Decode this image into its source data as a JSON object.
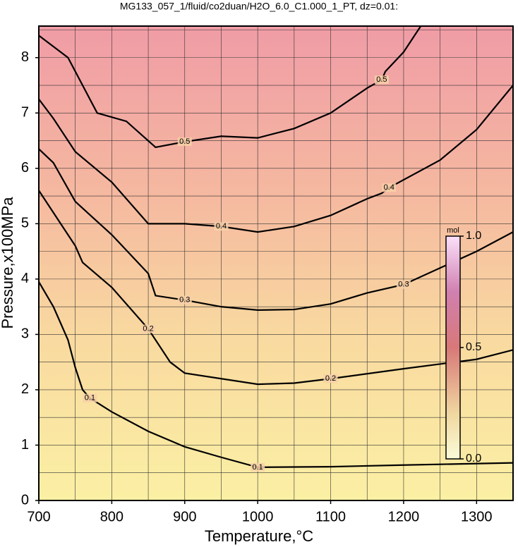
{
  "chart_data": {
    "type": "contour",
    "title": "MG133_057_1/fluid/co2duan/H2O_6.0_C1.000_1_PT, dz=0.01:",
    "x_label": "Temperature,°C",
    "y_label": "Pressure,x100MPa",
    "xlim": [
      700,
      1350
    ],
    "ylim": [
      0,
      8.57
    ],
    "xticks": [
      700,
      800,
      900,
      1000,
      1100,
      1200,
      1300
    ],
    "yticks": [
      0,
      1,
      2,
      3,
      4,
      5,
      6,
      7,
      8
    ],
    "xgrid": [
      700,
      750,
      800,
      850,
      900,
      950,
      1000,
      1050,
      1100,
      1150,
      1200,
      1250,
      1300
    ],
    "ygrid": [
      0.5,
      1,
      1.5,
      2,
      2.5,
      3,
      3.5,
      4,
      4.5,
      5,
      5.5,
      6,
      6.5,
      7,
      7.5,
      8,
      8.5
    ],
    "grid": true,
    "series": [
      {
        "name": "0.1",
        "color": "#000000",
        "x": [
          700,
          720,
          740,
          750,
          760,
          770,
          800,
          850,
          900,
          950,
          1000,
          1100,
          1200,
          1350
        ],
        "values": [
          3.95,
          3.5,
          2.9,
          2.4,
          2.0,
          1.85,
          1.6,
          1.25,
          0.97,
          0.78,
          0.6,
          0.61,
          0.64,
          0.68
        ]
      },
      {
        "name": "0.2",
        "color": "#000000",
        "x": [
          700,
          730,
          750,
          760,
          800,
          850,
          880,
          900,
          1000,
          1050,
          1100,
          1200,
          1300,
          1350
        ],
        "values": [
          5.6,
          5.0,
          4.6,
          4.3,
          3.85,
          3.1,
          2.5,
          2.3,
          2.1,
          2.12,
          2.2,
          2.38,
          2.55,
          2.72
        ]
      },
      {
        "name": "0.3",
        "color": "#000000",
        "x": [
          700,
          720,
          750,
          800,
          850,
          860,
          900,
          950,
          1000,
          1050,
          1100,
          1150,
          1200,
          1250,
          1300,
          1350
        ],
        "values": [
          6.35,
          6.1,
          5.4,
          4.8,
          4.1,
          3.7,
          3.62,
          3.5,
          3.44,
          3.45,
          3.55,
          3.75,
          3.9,
          4.2,
          4.5,
          4.85
        ]
      },
      {
        "name": "0.4",
        "color": "#000000",
        "x": [
          700,
          720,
          750,
          800,
          850,
          900,
          950,
          1000,
          1050,
          1100,
          1150,
          1170,
          1180,
          1250,
          1300,
          1350
        ],
        "values": [
          7.25,
          6.9,
          6.3,
          5.75,
          5.0,
          5.0,
          4.95,
          4.85,
          4.95,
          5.15,
          5.45,
          5.55,
          5.65,
          6.15,
          6.7,
          7.5
        ]
      },
      {
        "name": "0.5",
        "color": "#000000",
        "x": [
          700,
          740,
          760,
          780,
          820,
          860,
          900,
          950,
          1000,
          1050,
          1100,
          1150,
          1170,
          1175,
          1200,
          1225
        ],
        "values": [
          8.4,
          8.0,
          7.5,
          7.0,
          6.85,
          6.38,
          6.48,
          6.58,
          6.55,
          6.72,
          7.0,
          7.45,
          7.6,
          7.75,
          8.1,
          8.6
        ]
      }
    ],
    "colorbar": {
      "label": "mol",
      "lim": [
        0,
        1
      ],
      "ticks": [
        {
          "value": 0,
          "label": "0.0"
        },
        {
          "value": 0.5,
          "label": "0.5"
        },
        {
          "value": 1,
          "label": "1.0"
        }
      ]
    }
  }
}
